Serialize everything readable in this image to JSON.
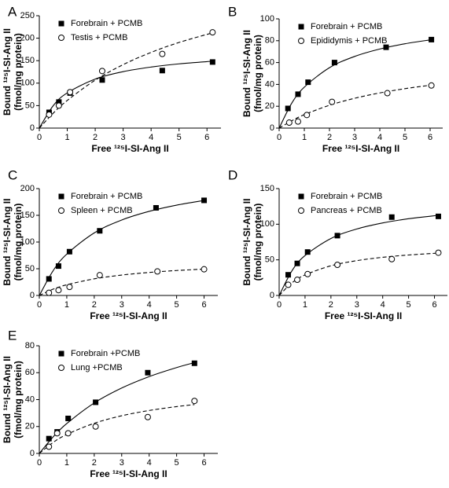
{
  "chart_data": [
    {
      "type": "scatter",
      "label": "A",
      "x_label": "Free ¹²⁵I-SI-Ang II",
      "y_label": [
        "Bound ¹²⁵I-SI-Ang II",
        "(fmol/mg protein)"
      ],
      "xlim": [
        0,
        6.5
      ],
      "xticks": [
        0,
        1,
        2,
        3,
        4,
        5,
        6
      ],
      "ylim": [
        0,
        250
      ],
      "yticks": [
        0,
        50,
        100,
        150,
        200,
        250
      ],
      "series": [
        {
          "name": "Forebrain + PCMB",
          "color": "#000000",
          "marker": "square",
          "line": "solid",
          "x": [
            0.35,
            0.7,
            1.1,
            2.25,
            4.4,
            6.2
          ],
          "values": [
            35,
            58,
            78,
            107,
            128,
            147
          ],
          "fit_x": [
            0,
            0.5,
            1,
            2,
            3,
            4,
            5,
            6.2
          ],
          "fit_values": [
            0,
            50,
            78.3,
            109.1,
            125.6,
            135.8,
            142.9,
            148.8
          ]
        },
        {
          "name": "Testis + PCMB",
          "color": "#000000",
          "marker": "circle",
          "line": "dashed",
          "x": [
            0.35,
            0.7,
            1.1,
            2.25,
            4.4,
            6.2
          ],
          "values": [
            30,
            50,
            80,
            127,
            165,
            213
          ],
          "fit_x": [
            0,
            0.5,
            1,
            2,
            3,
            4,
            5,
            6.2
          ],
          "fit_values": [
            0,
            33.3,
            61.5,
            106.7,
            141.2,
            168.4,
            190.5,
            212
          ]
        }
      ]
    },
    {
      "type": "scatter",
      "label": "B",
      "x_label": "Free ¹²⁵I-SI-Ang II",
      "y_label": [
        "Bound ¹²⁵I-SI-Ang II",
        "(fmol/mg protein)"
      ],
      "xlim": [
        0,
        6.5
      ],
      "xticks": [
        0,
        1,
        2,
        3,
        4,
        5,
        6
      ],
      "ylim": [
        0,
        100
      ],
      "yticks": [
        0,
        20,
        40,
        60,
        80,
        100
      ],
      "series": [
        {
          "name": "Forebrain + PCMB",
          "color": "#000000",
          "marker": "square",
          "line": "solid",
          "x": [
            0.35,
            0.75,
            1.15,
            2.2,
            4.25,
            6.05
          ],
          "values": [
            18,
            31,
            42,
            60,
            74,
            81
          ],
          "fit_x": [
            0,
            0.5,
            1,
            2,
            3,
            4,
            5,
            6.05
          ],
          "fit_values": [
            0,
            22.8,
            37.5,
            55.3,
            65.6,
            72.4,
            77.2,
            80.9
          ]
        },
        {
          "name": "Epididymis + PCMB",
          "color": "#000000",
          "marker": "circle",
          "line": "dashed",
          "x": [
            0.4,
            0.75,
            1.1,
            2.1,
            4.3,
            6.05
          ],
          "values": [
            5,
            6,
            12,
            24,
            32,
            39
          ],
          "fit_x": [
            0,
            0.5,
            1,
            2,
            3,
            4,
            5,
            6.05
          ],
          "fit_values": [
            0,
            6.7,
            12.3,
            20.9,
            27.3,
            32.2,
            36.1,
            39.4
          ]
        }
      ]
    },
    {
      "type": "scatter",
      "label": "C",
      "x_label": "Free ¹²⁵I-SI-Ang II",
      "y_label": [
        "Bound ¹²⁵I-SI-Ang II",
        "(fmol/mg protein)"
      ],
      "xlim": [
        0,
        6.5
      ],
      "xticks": [
        0,
        1,
        2,
        3,
        4,
        5,
        6
      ],
      "ylim": [
        0,
        200
      ],
      "yticks": [
        0,
        50,
        100,
        150,
        200
      ],
      "series": [
        {
          "name": "Forebrain + PCMB",
          "color": "#000000",
          "marker": "square",
          "line": "solid",
          "x": [
            0.35,
            0.7,
            1.1,
            2.2,
            4.25,
            6
          ],
          "values": [
            31,
            55,
            82,
            121,
            164,
            178
          ],
          "fit_x": [
            0,
            0.5,
            1,
            2,
            3,
            4,
            5,
            6
          ],
          "fit_values": [
            0,
            46.1,
            77.4,
            117.1,
            141.2,
            157.4,
            169,
            177.8
          ]
        },
        {
          "name": "Spleen + PCMB",
          "color": "#000000",
          "marker": "circle",
          "line": "dashed",
          "x": [
            0.35,
            0.7,
            1.1,
            2.2,
            4.3,
            6
          ],
          "values": [
            5,
            10,
            16,
            38,
            45,
            49
          ],
          "fit_x": [
            0,
            0.5,
            1,
            2,
            3,
            4,
            5,
            6
          ],
          "fit_values": [
            0,
            11.7,
            20,
            31.1,
            38.2,
            43.1,
            46.7,
            49.4
          ]
        }
      ]
    },
    {
      "type": "scatter",
      "label": "D",
      "x_label": "Free ¹²⁵I-SI-Ang II",
      "y_label": [
        "Bound ¹²⁵I-SI-Ang II",
        "(fmol/mg protein)"
      ],
      "xlim": [
        0,
        6.5
      ],
      "xticks": [
        0,
        1,
        2,
        3,
        4,
        5,
        6
      ],
      "ylim": [
        0,
        150
      ],
      "yticks": [
        0,
        50,
        100,
        150
      ],
      "series": [
        {
          "name": "Forebrain + PCMB",
          "color": "#000000",
          "marker": "square",
          "line": "solid",
          "x": [
            0.35,
            0.7,
            1.1,
            2.25,
            4.35,
            6.15
          ],
          "values": [
            29,
            45,
            61,
            84,
            110,
            111
          ],
          "fit_x": [
            0,
            0.5,
            1,
            2,
            3,
            4,
            5,
            6.15
          ],
          "fit_values": [
            0,
            35,
            56,
            80,
            93.3,
            101.8,
            107.7,
            112.5
          ]
        },
        {
          "name": "Pancreas + PCMB",
          "color": "#000000",
          "marker": "circle",
          "line": "dashed",
          "x": [
            0.35,
            0.7,
            1.1,
            2.25,
            4.35,
            6.15
          ],
          "values": [
            15,
            22,
            30,
            43,
            51,
            60
          ],
          "fit_x": [
            0,
            0.5,
            1,
            2,
            3,
            4,
            5,
            6.15
          ],
          "fit_values": [
            0,
            17.9,
            28.8,
            41.7,
            48.9,
            53.6,
            56.8,
            59.5
          ]
        }
      ]
    },
    {
      "type": "scatter",
      "label": "E",
      "x_label": "Free ¹²⁵I-SI-Ang II",
      "y_label": [
        "Bound ¹²⁵I-SI-Ang II",
        "(fmol/mg protein)"
      ],
      "xlim": [
        0,
        6.5
      ],
      "xticks": [
        0,
        1,
        2,
        3,
        4,
        5,
        6
      ],
      "ylim": [
        0,
        80
      ],
      "yticks": [
        0,
        20,
        40,
        60,
        80
      ],
      "series": [
        {
          "name": "Forebrain +PCMB",
          "color": "#000000",
          "marker": "square",
          "line": "solid",
          "x": [
            0.35,
            0.65,
            1.05,
            2.05,
            3.95,
            5.65
          ],
          "values": [
            11,
            16,
            26,
            38,
            60,
            67
          ],
          "fit_x": [
            0,
            0.5,
            1,
            2,
            3,
            4,
            5,
            5.65
          ],
          "fit_values": [
            0,
            12.2,
            22.2,
            37.5,
            48.6,
            57.1,
            63.8,
            67.5
          ]
        },
        {
          "name": "Lung +PCMB",
          "color": "#000000",
          "marker": "circle",
          "line": "dashed",
          "x": [
            0.35,
            0.65,
            1.05,
            2.05,
            3.95,
            5.65
          ],
          "values": [
            5,
            15,
            15,
            20,
            27,
            39
          ],
          "fit_x": [
            0,
            0.5,
            1,
            2,
            3,
            4,
            5,
            5.65
          ],
          "fit_values": [
            0,
            8.1,
            14.1,
            22.4,
            28,
            31.9,
            34.8,
            36.3
          ]
        }
      ]
    }
  ]
}
